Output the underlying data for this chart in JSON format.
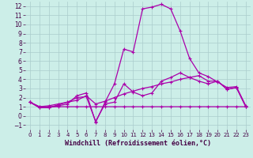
{
  "bg_color": "#cceee8",
  "grid_color": "#aacccc",
  "line_color": "#aa00aa",
  "xlabel": "Windchill (Refroidissement éolien,°C)",
  "xlim": [
    -0.5,
    23.5
  ],
  "ylim": [
    -1.5,
    12.5
  ],
  "xticks": [
    0,
    1,
    2,
    3,
    4,
    5,
    6,
    7,
    8,
    9,
    10,
    11,
    12,
    13,
    14,
    15,
    16,
    17,
    18,
    19,
    20,
    21,
    22,
    23
  ],
  "yticks": [
    -1,
    0,
    1,
    2,
    3,
    4,
    5,
    6,
    7,
    8,
    9,
    10,
    11,
    12
  ],
  "series": [
    [
      1.5,
      0.9,
      0.9,
      1.1,
      1.3,
      2.2,
      2.5,
      -0.7,
      1.5,
      3.5,
      7.3,
      7.0,
      11.7,
      11.9,
      12.2,
      11.7,
      9.3,
      6.3,
      4.7,
      4.3,
      3.7,
      3.1,
      3.2,
      1.1
    ],
    [
      1.5,
      0.9,
      0.9,
      1.2,
      1.5,
      2.0,
      2.1,
      -0.6,
      1.3,
      1.5,
      3.5,
      2.6,
      2.2,
      2.5,
      3.8,
      4.2,
      4.7,
      4.2,
      3.8,
      3.5,
      3.8,
      2.9,
      3.1,
      1.0
    ],
    [
      1.5,
      1.0,
      1.1,
      1.3,
      1.5,
      1.7,
      2.2,
      1.3,
      1.6,
      2.0,
      2.4,
      2.7,
      3.0,
      3.2,
      3.5,
      3.7,
      4.0,
      4.2,
      4.4,
      3.8,
      3.8,
      2.9,
      3.1,
      1.0
    ],
    [
      1.5,
      1.0,
      1.0,
      1.0,
      1.0,
      1.0,
      1.0,
      1.0,
      1.0,
      1.0,
      1.0,
      1.0,
      1.0,
      1.0,
      1.0,
      1.0,
      1.0,
      1.0,
      1.0,
      1.0,
      1.0,
      1.0,
      1.0,
      1.0
    ]
  ],
  "figsize": [
    3.2,
    2.0
  ],
  "dpi": 100,
  "xlabel_fontsize": 6,
  "tick_fontsize": 5.5,
  "linewidth": 0.9,
  "markersize": 2.5
}
